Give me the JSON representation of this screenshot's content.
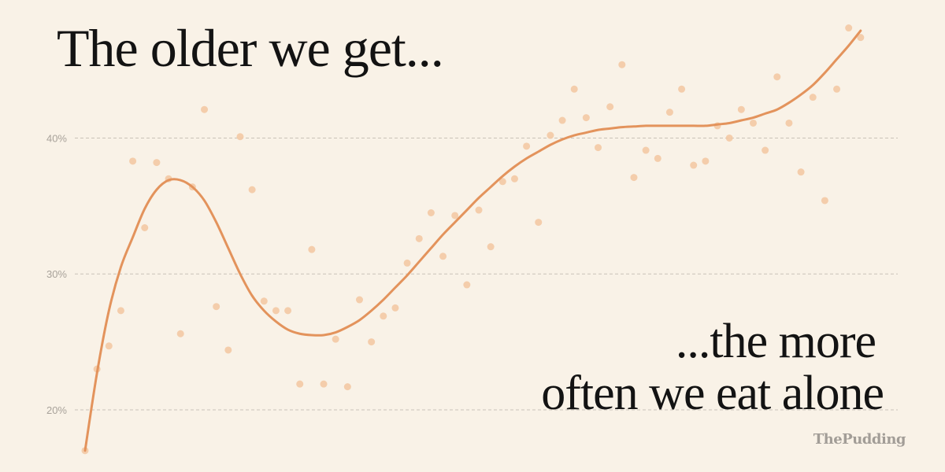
{
  "headline": {
    "top": "The older we get...",
    "bottom_line1": "...the more",
    "bottom_line2": "often we eat alone"
  },
  "brand": "ThePudding",
  "colors": {
    "background": "#f9f2e7",
    "trend_line": "#e3935c",
    "dots": "#f3c9a4",
    "text": "#131313",
    "gridlines": "#c9c2b8"
  },
  "chart_data": {
    "type": "scatter",
    "grid": true,
    "ylim": [
      16.7,
      49
    ],
    "xlim": [
      0,
      66
    ],
    "y_ticks": [
      {
        "value": 20,
        "label": "20%"
      },
      {
        "value": 30,
        "label": "30%"
      },
      {
        "value": 40,
        "label": "40%"
      }
    ],
    "series": [
      {
        "kind": "points",
        "points": [
          [
            0,
            17.0
          ],
          [
            1,
            23.0
          ],
          [
            2,
            24.7
          ],
          [
            3,
            27.3
          ],
          [
            4,
            38.3
          ],
          [
            5,
            33.4
          ],
          [
            6,
            38.2
          ],
          [
            7,
            37.0
          ],
          [
            8,
            25.6
          ],
          [
            9,
            36.4
          ],
          [
            10,
            42.1
          ],
          [
            11,
            27.6
          ],
          [
            12,
            24.4
          ],
          [
            13,
            40.1
          ],
          [
            14,
            36.2
          ],
          [
            15,
            28.0
          ],
          [
            16,
            27.3
          ],
          [
            17,
            27.3
          ],
          [
            18,
            21.9
          ],
          [
            19,
            31.8
          ],
          [
            20,
            21.9
          ],
          [
            21,
            25.2
          ],
          [
            22,
            21.7
          ],
          [
            23,
            28.1
          ],
          [
            24,
            25.0
          ],
          [
            25,
            26.9
          ],
          [
            26,
            27.5
          ],
          [
            27,
            30.8
          ],
          [
            28,
            32.6
          ],
          [
            29,
            34.5
          ],
          [
            30,
            31.3
          ],
          [
            31,
            34.3
          ],
          [
            32,
            29.2
          ],
          [
            33,
            34.7
          ],
          [
            34,
            32.0
          ],
          [
            35,
            36.8
          ],
          [
            36,
            37.0
          ],
          [
            37,
            39.4
          ],
          [
            38,
            33.8
          ],
          [
            39,
            40.2
          ],
          [
            40,
            41.3
          ],
          [
            41,
            43.6
          ],
          [
            42,
            41.5
          ],
          [
            43,
            39.3
          ],
          [
            44,
            42.3
          ],
          [
            45,
            45.4
          ],
          [
            46,
            37.1
          ],
          [
            47,
            39.1
          ],
          [
            48,
            38.5
          ],
          [
            49,
            41.9
          ],
          [
            50,
            43.6
          ],
          [
            51,
            38.0
          ],
          [
            52,
            38.3
          ],
          [
            53,
            40.9
          ],
          [
            54,
            40.0
          ],
          [
            55,
            42.1
          ],
          [
            56,
            41.1
          ],
          [
            57,
            39.1
          ],
          [
            58,
            44.5
          ],
          [
            59,
            41.1
          ],
          [
            60,
            37.5
          ],
          [
            61,
            43.0
          ],
          [
            62,
            35.4
          ],
          [
            63,
            43.6
          ],
          [
            64,
            48.1
          ],
          [
            65,
            47.4
          ]
        ]
      },
      {
        "kind": "trend",
        "points": [
          [
            0,
            17.0
          ],
          [
            1,
            22.7
          ],
          [
            2,
            27.3
          ],
          [
            3,
            30.5
          ],
          [
            4,
            32.7
          ],
          [
            5,
            34.8
          ],
          [
            6,
            36.2
          ],
          [
            7,
            36.9
          ],
          [
            8,
            36.9
          ],
          [
            9,
            36.4
          ],
          [
            10,
            35.4
          ],
          [
            11,
            33.8
          ],
          [
            12,
            31.9
          ],
          [
            13,
            30.0
          ],
          [
            14,
            28.4
          ],
          [
            15,
            27.3
          ],
          [
            16,
            26.5
          ],
          [
            17,
            25.9
          ],
          [
            18,
            25.6
          ],
          [
            19,
            25.5
          ],
          [
            20,
            25.5
          ],
          [
            21,
            25.7
          ],
          [
            22,
            26.1
          ],
          [
            23,
            26.6
          ],
          [
            24,
            27.3
          ],
          [
            25,
            28.1
          ],
          [
            26,
            29.0
          ],
          [
            27,
            29.9
          ],
          [
            28,
            30.9
          ],
          [
            29,
            31.9
          ],
          [
            30,
            32.9
          ],
          [
            31,
            33.8
          ],
          [
            32,
            34.7
          ],
          [
            33,
            35.6
          ],
          [
            34,
            36.4
          ],
          [
            35,
            37.2
          ],
          [
            36,
            37.9
          ],
          [
            37,
            38.5
          ],
          [
            38,
            39.0
          ],
          [
            39,
            39.5
          ],
          [
            40,
            39.9
          ],
          [
            41,
            40.2
          ],
          [
            42,
            40.4
          ],
          [
            43,
            40.6
          ],
          [
            44,
            40.7
          ],
          [
            45,
            40.8
          ],
          [
            46,
            40.85
          ],
          [
            47,
            40.9
          ],
          [
            48,
            40.9
          ],
          [
            49,
            40.9
          ],
          [
            50,
            40.9
          ],
          [
            51,
            40.9
          ],
          [
            52,
            40.9
          ],
          [
            53,
            41.0
          ],
          [
            54,
            41.1
          ],
          [
            55,
            41.3
          ],
          [
            56,
            41.5
          ],
          [
            57,
            41.8
          ],
          [
            58,
            42.1
          ],
          [
            59,
            42.6
          ],
          [
            60,
            43.2
          ],
          [
            61,
            43.9
          ],
          [
            62,
            44.8
          ],
          [
            63,
            45.8
          ],
          [
            64,
            46.8
          ],
          [
            65,
            47.9
          ]
        ]
      }
    ]
  }
}
